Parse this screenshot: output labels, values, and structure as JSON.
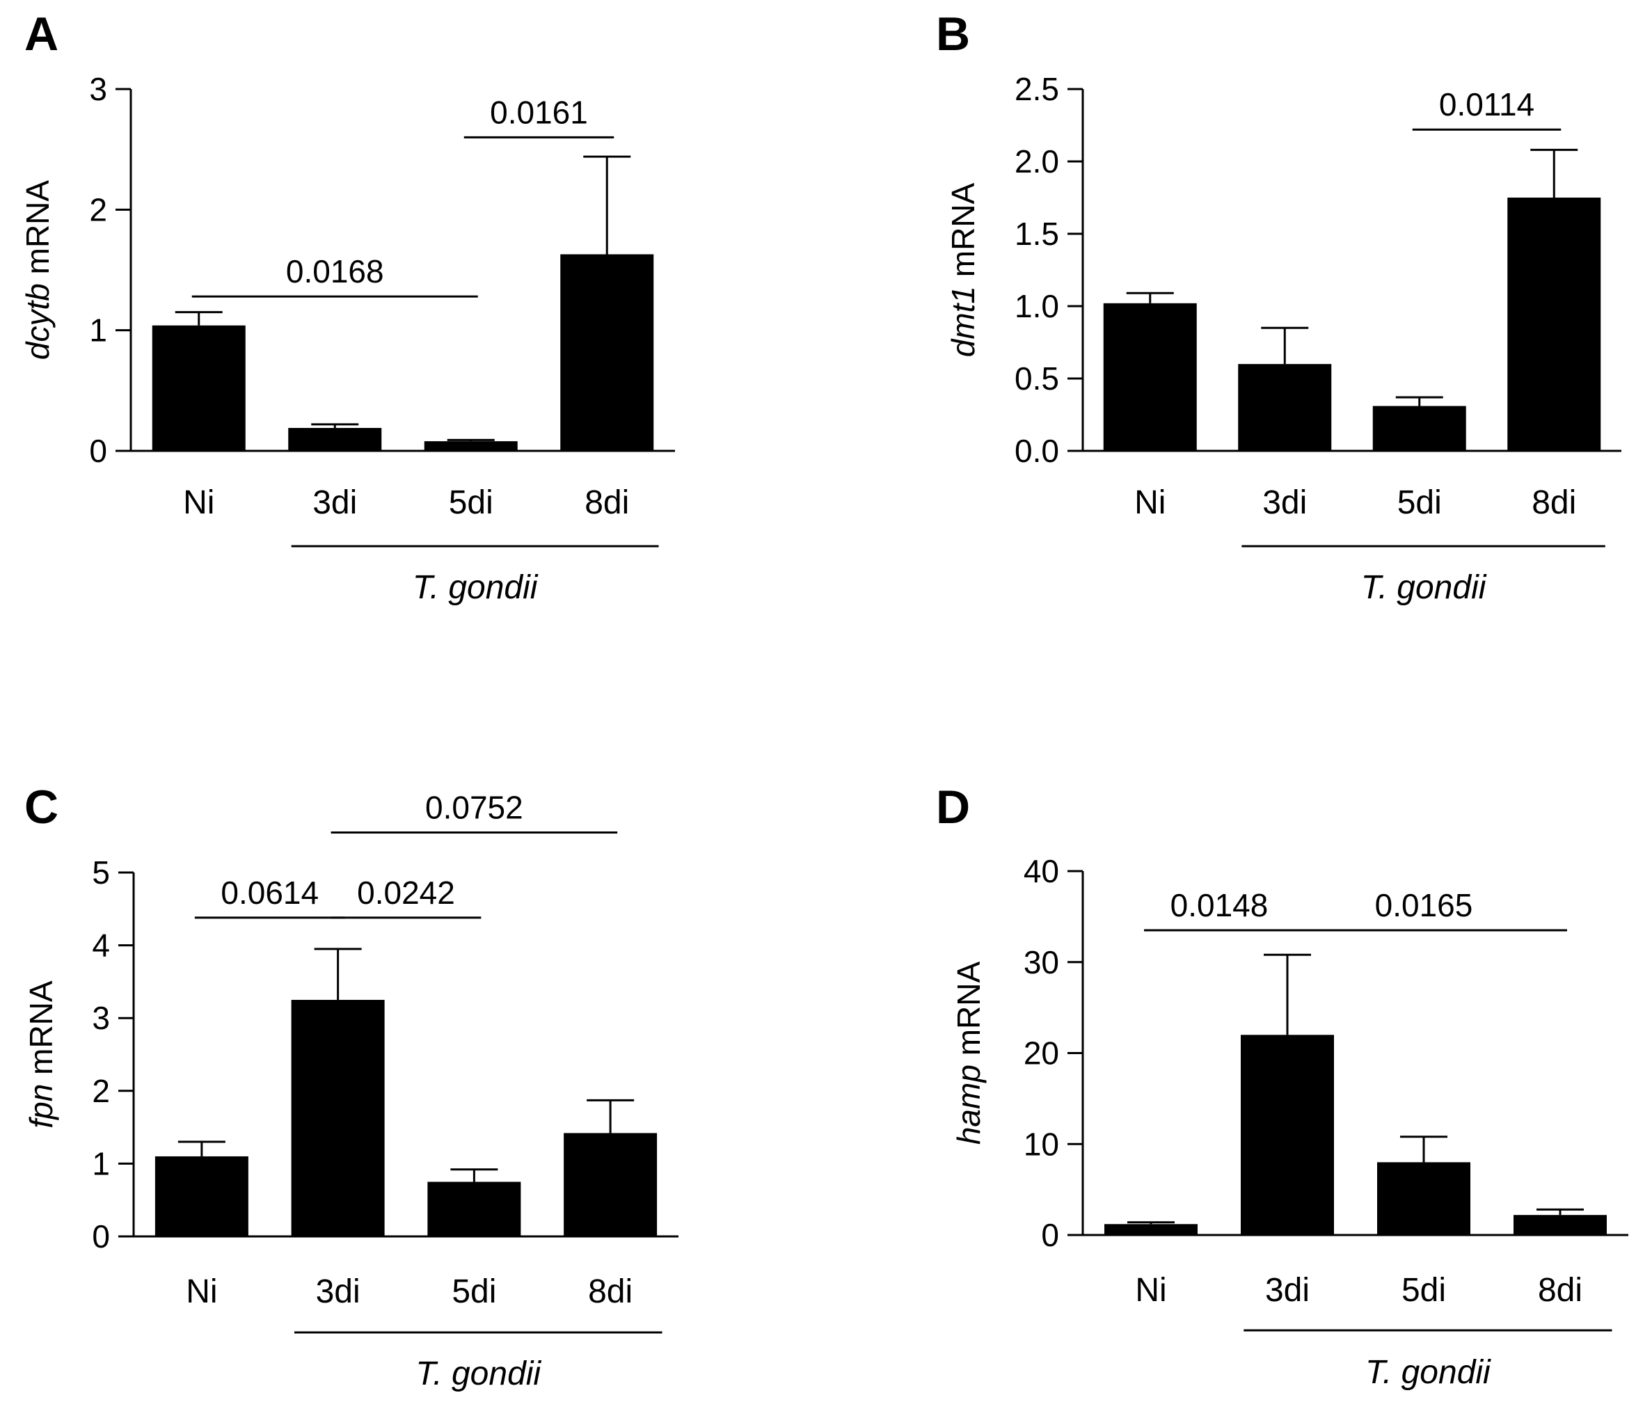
{
  "chart_data": [
    {
      "panel": "A",
      "type": "bar",
      "categories": [
        "Ni",
        "3di",
        "5di",
        "8di"
      ],
      "values": [
        1.04,
        0.19,
        0.08,
        1.63
      ],
      "errors": [
        0.11,
        0.03,
        0.01,
        0.81
      ],
      "ylabel": {
        "gene": "dcytb",
        "rest": " mRNA"
      },
      "ylim": [
        0,
        3
      ],
      "yticks": [
        "0",
        "1",
        "2",
        "3"
      ],
      "group_label": "T. gondii",
      "group_span": [
        1,
        3
      ],
      "bar_color": "#000000",
      "comparisons": [
        {
          "from": 0,
          "to": 2,
          "label": "0.0168",
          "y": 1.28
        },
        {
          "from": 2,
          "to": 3,
          "label": "0.0161",
          "y": 2.6
        }
      ]
    },
    {
      "panel": "B",
      "type": "bar",
      "categories": [
        "Ni",
        "3di",
        "5di",
        "8di"
      ],
      "values": [
        1.02,
        0.6,
        0.31,
        1.75
      ],
      "errors": [
        0.07,
        0.25,
        0.06,
        0.33
      ],
      "ylabel": {
        "gene": "dmt1",
        "rest": " mRNA"
      },
      "ylim": [
        0,
        2.5
      ],
      "yticks": [
        "0.0",
        "0.5",
        "1.0",
        "1.5",
        "2.0",
        "2.5"
      ],
      "group_label": "T. gondii",
      "group_span": [
        1,
        3
      ],
      "bar_color": "#000000",
      "comparisons": [
        {
          "from": 2,
          "to": 3,
          "label": "0.0114",
          "y": 2.22
        }
      ]
    },
    {
      "panel": "C",
      "type": "bar",
      "categories": [
        "Ni",
        "3di",
        "5di",
        "8di"
      ],
      "values": [
        1.1,
        3.25,
        0.75,
        1.42
      ],
      "errors": [
        0.2,
        0.7,
        0.17,
        0.45
      ],
      "ylabel": {
        "gene": "fpn",
        "rest": " mRNA"
      },
      "ylim": [
        0,
        5
      ],
      "yticks": [
        "0",
        "1",
        "2",
        "3",
        "4",
        "5"
      ],
      "group_label": "T. gondii",
      "group_span": [
        1,
        3
      ],
      "bar_color": "#000000",
      "comparisons": [
        {
          "from": 0,
          "to": 1,
          "label": "0.0614",
          "y": 4.38
        },
        {
          "from": 1,
          "to": 2,
          "label": "0.0242",
          "y": 4.38
        },
        {
          "from": 1,
          "to": 3,
          "label": "0.0752",
          "y": 5.55
        }
      ]
    },
    {
      "panel": "D",
      "type": "bar",
      "categories": [
        "Ni",
        "3di",
        "5di",
        "8di"
      ],
      "values": [
        1.2,
        22,
        8,
        2.2
      ],
      "errors": [
        0.2,
        8.8,
        2.8,
        0.6
      ],
      "ylabel": {
        "gene": "hamp",
        "rest": " mRNA"
      },
      "ylim": [
        0,
        40
      ],
      "yticks": [
        "0",
        "10",
        "20",
        "30",
        "40"
      ],
      "group_label": "T. gondii",
      "group_span": [
        1,
        3
      ],
      "bar_color": "#000000",
      "comparisons": [
        {
          "from": 0,
          "to": 1,
          "label": "0.0148",
          "y": 33.5
        },
        {
          "from": 1,
          "to": 3,
          "label": "0.0165",
          "y": 33.5
        }
      ]
    }
  ]
}
